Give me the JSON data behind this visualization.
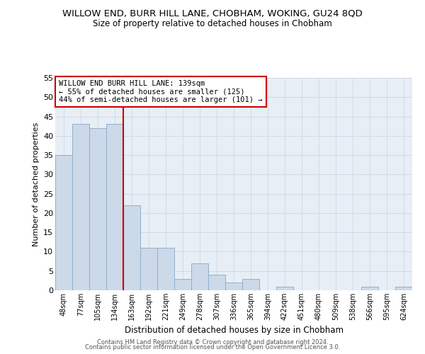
{
  "title": "WILLOW END, BURR HILL LANE, CHOBHAM, WOKING, GU24 8QD",
  "subtitle": "Size of property relative to detached houses in Chobham",
  "xlabel": "Distribution of detached houses by size in Chobham",
  "ylabel": "Number of detached properties",
  "categories": [
    "48sqm",
    "77sqm",
    "105sqm",
    "134sqm",
    "163sqm",
    "192sqm",
    "221sqm",
    "249sqm",
    "278sqm",
    "307sqm",
    "336sqm",
    "365sqm",
    "394sqm",
    "422sqm",
    "451sqm",
    "480sqm",
    "509sqm",
    "538sqm",
    "566sqm",
    "595sqm",
    "624sqm"
  ],
  "values": [
    35,
    43,
    42,
    43,
    22,
    11,
    11,
    3,
    7,
    4,
    2,
    3,
    0,
    1,
    0,
    0,
    0,
    0,
    1,
    0,
    1
  ],
  "bar_color": "#ccd9e8",
  "bar_edge_color": "#8fb0cc",
  "reference_label": "WILLOW END BURR HILL LANE: 139sqm",
  "annotation_line1": "← 55% of detached houses are smaller (125)",
  "annotation_line2": "44% of semi-detached houses are larger (101) →",
  "annotation_box_color": "#ffffff",
  "annotation_box_edge": "#cc0000",
  "ref_line_color": "#cc0000",
  "bg_color": "#e8eef5",
  "ylim": [
    0,
    55
  ],
  "yticks": [
    0,
    5,
    10,
    15,
    20,
    25,
    30,
    35,
    40,
    45,
    50,
    55
  ],
  "footer1": "Contains HM Land Registry data © Crown copyright and database right 2024.",
  "footer2": "Contains public sector information licensed under the Open Government Licence 3.0.",
  "title_fontsize": 9.5,
  "subtitle_fontsize": 8.5,
  "bar_width": 1.0
}
